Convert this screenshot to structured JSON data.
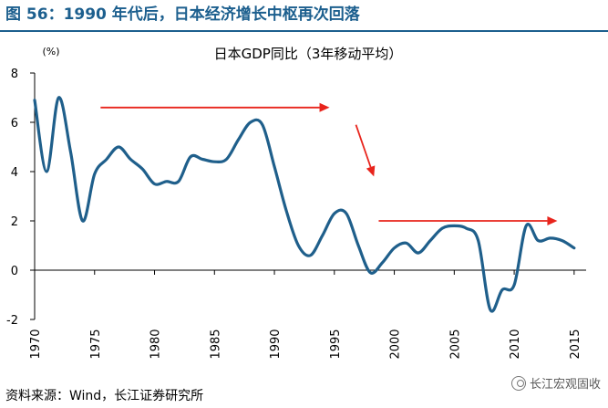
{
  "figure_title": "图 56：1990 年代后，日本经济增长中枢再次回落",
  "source_note": "资料来源：Wind，长江证券研究所",
  "watermark_text": "长江宏观固收",
  "colors": {
    "title": "#1c5f8e",
    "series": "#1f5f8b",
    "arrow": "#e8241c",
    "axis": "#000000"
  },
  "chart_data": {
    "type": "line",
    "title": "日本GDP同比（3年移动平均）",
    "unit_label": "(%)",
    "xlim": [
      1970,
      2016
    ],
    "ylim": [
      -2,
      8
    ],
    "x_ticks": [
      1970,
      1975,
      1980,
      1985,
      1990,
      1995,
      2000,
      2005,
      2010,
      2015
    ],
    "x_tick_labels": [
      "1970",
      "1975",
      "1980",
      "1985",
      "1990",
      "1995",
      "2000",
      "2005",
      "2010",
      "2015"
    ],
    "y_ticks": [
      -2,
      0,
      2,
      4,
      6,
      8
    ],
    "y_tick_labels": [
      "-2",
      "0",
      "2",
      "4",
      "6",
      "8"
    ],
    "grid": false,
    "series": [
      {
        "name": "",
        "x": [
          1970,
          1971,
          1972,
          1973,
          1974,
          1975,
          1976,
          1977,
          1978,
          1979,
          1980,
          1981,
          1982,
          1983,
          1984,
          1985,
          1986,
          1987,
          1988,
          1989,
          1990,
          1991,
          1992,
          1993,
          1994,
          1995,
          1996,
          1997,
          1998,
          1999,
          2000,
          2001,
          2002,
          2003,
          2004,
          2005,
          2006,
          2007,
          2008,
          2009,
          2010,
          2011,
          2012,
          2013,
          2014,
          2015
        ],
        "values": [
          6.9,
          4.0,
          7.0,
          4.8,
          2.0,
          3.9,
          4.5,
          5.0,
          4.5,
          4.1,
          3.5,
          3.6,
          3.6,
          4.6,
          4.5,
          4.4,
          4.5,
          5.3,
          6.0,
          5.9,
          4.2,
          2.4,
          1.0,
          0.6,
          1.4,
          2.3,
          2.3,
          1.0,
          -0.1,
          0.3,
          0.9,
          1.1,
          0.7,
          1.2,
          1.7,
          1.8,
          1.7,
          1.2,
          -1.6,
          -0.8,
          -0.6,
          1.8,
          1.2,
          1.3,
          1.2,
          0.9
        ]
      }
    ],
    "arrows": [
      {
        "from": [
          1975.5,
          6.6
        ],
        "to": [
          1994.6,
          6.6
        ]
      },
      {
        "from": [
          1996.8,
          5.9
        ],
        "to": [
          1998.3,
          3.8
        ]
      },
      {
        "from": [
          1998.7,
          2.0
        ],
        "to": [
          2013.6,
          2.0
        ]
      }
    ]
  }
}
